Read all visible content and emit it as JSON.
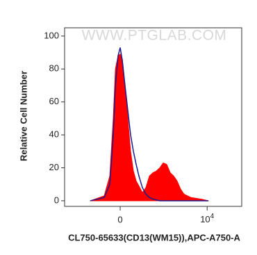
{
  "chart_data": {
    "type": "histogram-overlay",
    "watermark": "WWW.PTGLAB.COM",
    "x_label": "CL750-65633(CD13(WM15)),APC-A750-A",
    "y_label": "Relative Cell Number",
    "xscale": {
      "type": "asinh",
      "cofactor": 150
    },
    "x": [
      -389,
      -154,
      -93,
      -60,
      -41,
      -18,
      0,
      18,
      41,
      66,
      93,
      122,
      154,
      189,
      240,
      301,
      373,
      460,
      562,
      689,
      837,
      1025,
      1247,
      1516,
      1840,
      2250,
      2720,
      4020,
      7240,
      10700
    ],
    "series": [
      {
        "color": "#ff0000",
        "fill": true,
        "values": [
          0,
          3,
          15,
          50,
          80,
          88,
          89,
          86,
          70,
          50,
          30,
          18,
          12,
          9,
          5,
          8,
          15,
          17,
          18,
          20,
          23,
          22,
          17,
          15,
          12,
          7,
          4,
          2,
          1,
          0
        ]
      },
      {
        "color": "#1a1a8c",
        "fill": false,
        "values": [
          0,
          2,
          10,
          40,
          70,
          88,
          93,
          85,
          70,
          55,
          40,
          30,
          22,
          15,
          8,
          4,
          2,
          1,
          0.5,
          0,
          0,
          0,
          0,
          0,
          0,
          0,
          0,
          0,
          0,
          0
        ]
      }
    ],
    "xlim": [
      -1710,
      70000
    ],
    "xticks": [
      0,
      {
        "value": 10000,
        "label": "10",
        "superscript": "4"
      }
    ],
    "ylim": [
      -3.4,
      105
    ],
    "yticks": [
      0,
      20,
      40,
      60,
      80,
      100
    ]
  }
}
